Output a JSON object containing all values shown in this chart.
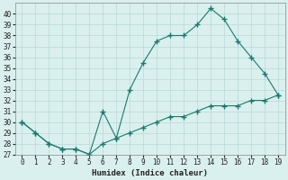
{
  "x": [
    0,
    1,
    2,
    3,
    4,
    5,
    6,
    7,
    8,
    9,
    10,
    11,
    12,
    13,
    14,
    15,
    16,
    17,
    18,
    19
  ],
  "y_main": [
    30,
    29,
    28,
    27.5,
    27.5,
    27,
    31,
    28.5,
    33,
    35.5,
    37.5,
    38,
    38,
    39,
    40.5,
    39.5,
    37.5,
    36,
    34.5,
    32.5
  ],
  "y_lower": [
    30,
    29,
    28,
    27.5,
    27.5,
    27,
    28,
    28.5,
    29,
    29.5,
    30,
    30.5,
    30.5,
    31,
    31.5,
    31.5,
    31.5,
    32,
    32,
    32.5
  ],
  "line_color": "#1a7a6e",
  "bg_color": "#daf0ee",
  "grid_color": "#b8d8d6",
  "xlabel": "Humidex (Indice chaleur)",
  "ylim": [
    27,
    41
  ],
  "xlim": [
    -0.5,
    19.5
  ],
  "ytick_min": 27,
  "ytick_max": 40,
  "xtick_min": 0,
  "xtick_max": 19,
  "marker": "+",
  "markersize": 4,
  "linewidth": 0.8,
  "xlabel_fontsize": 6.5,
  "tick_fontsize": 5.5
}
